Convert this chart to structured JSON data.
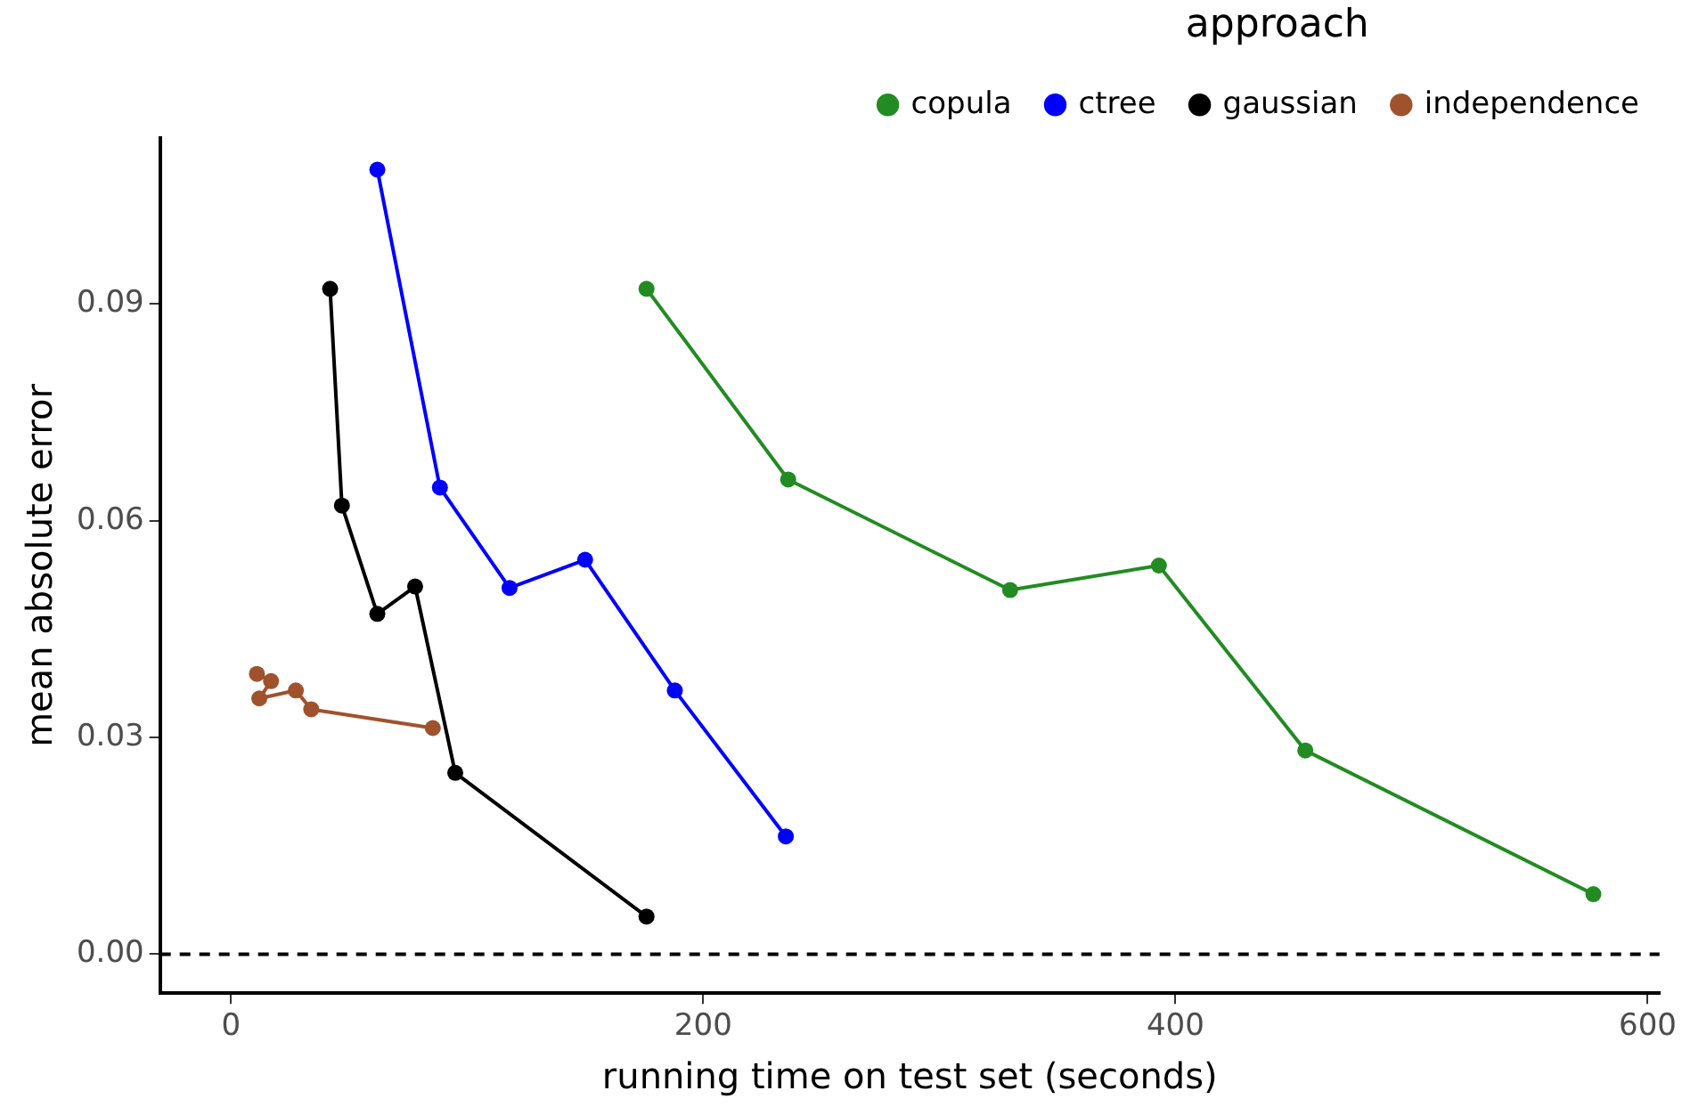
{
  "chart_data": {
    "type": "line",
    "xlabel": "running time on test set (seconds)",
    "ylabel": "mean absolute error",
    "legend_title": "approach",
    "legend": "top",
    "grid": false,
    "marker": "circle",
    "line_style": "solid",
    "xlim": [
      -30,
      605
    ],
    "xticks": [
      0,
      200,
      400,
      600
    ],
    "ylim": [
      -0.0054,
      0.113
    ],
    "yticks": [
      {
        "value": 0,
        "label": "0.00"
      },
      {
        "value": 0.03,
        "label": "0.03"
      },
      {
        "value": 0.06,
        "label": "0.06"
      },
      {
        "value": 0.09,
        "label": "0.09"
      }
    ],
    "ref_lines": [
      {
        "axis": "y",
        "value": 0,
        "line_style": "dashed",
        "color": "#000000"
      }
    ],
    "series": [
      {
        "name": "copula",
        "color": "#228b22",
        "x": [
          176,
          236,
          330,
          393,
          455,
          577
        ],
        "values": [
          0.0921,
          0.0657,
          0.0504,
          0.0538,
          0.0282,
          0.0083
        ]
      },
      {
        "name": "ctree",
        "color": "#0000ff",
        "x": [
          62,
          88.5,
          118,
          150,
          188,
          235
        ],
        "values": [
          0.1086,
          0.0646,
          0.0507,
          0.0546,
          0.0365,
          0.0163
        ]
      },
      {
        "name": "gaussian",
        "color": "#000000",
        "x": [
          42,
          47,
          62,
          78,
          95,
          176
        ],
        "values": [
          0.0921,
          0.0621,
          0.0471,
          0.0509,
          0.0251,
          0.0052
        ]
      },
      {
        "name": "independence",
        "color": "#a0522d",
        "x": [
          11,
          17,
          12,
          27.5,
          34,
          85.5
        ],
        "values": [
          0.0388,
          0.0378,
          0.0354,
          0.0365,
          0.0339,
          0.0313
        ]
      }
    ]
  }
}
